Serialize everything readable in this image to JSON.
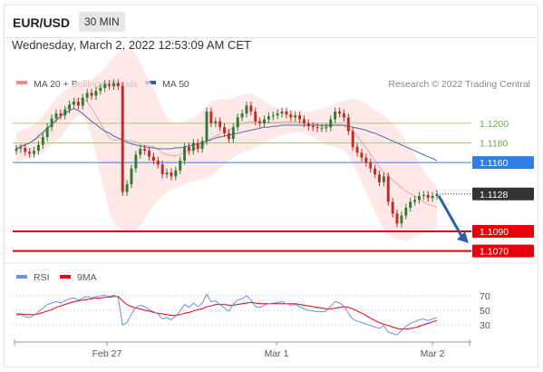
{
  "header": {
    "pair": "EUR/USD",
    "timeframe": "30 MIN"
  },
  "datetime": "Wednesday, March 2, 2022 12:53:09 AM CET",
  "credit": "Research © 2022 Trading Central",
  "colors": {
    "bollinger": "#f4a3a3",
    "bollinger_fill": "#fde0e0",
    "ma50": "#4a6fa8",
    "resistance": "#a6c97a",
    "pivot": "#2f7ee6",
    "support": "#e8000b",
    "candle_up": "#2e7d32",
    "candle_down": "#c62828",
    "rsi": "#6f8fe0",
    "rsi_ma": "#e8000b",
    "price_tag": "#333333",
    "arrow": "#2c5fa8"
  },
  "legend": [
    {
      "label": "MA 20 + Bollinger Bands",
      "color": "#f08c8c"
    },
    {
      "label": "MA 50",
      "color": "#2c5fa8"
    }
  ],
  "rsi_legend": [
    {
      "label": "RSI",
      "color": "#6f8fe0"
    },
    {
      "label": "9MA",
      "color": "#e8000b"
    }
  ],
  "chart_data": [
    {
      "type": "candlestick",
      "title": "",
      "x_ticks": [
        "Feb 27",
        "Mar 1",
        "Mar 2"
      ],
      "ylim": [
        1.1065,
        1.1235
      ],
      "levels": [
        {
          "value": 1.12,
          "label": "1.1200",
          "kind": "resistance"
        },
        {
          "value": 1.118,
          "label": "1.1180",
          "kind": "resistance"
        },
        {
          "value": 1.116,
          "label": "1.1160",
          "kind": "pivot"
        },
        {
          "value": 1.109,
          "label": "1.1090",
          "kind": "support"
        },
        {
          "value": 1.107,
          "label": "1.1070",
          "kind": "support"
        }
      ],
      "last_price": {
        "value": 1.1128,
        "label": "1.1128"
      },
      "forecast": "down to 1.1090",
      "close": [
        1.1174,
        1.1175,
        1.1171,
        1.1169,
        1.1172,
        1.1178,
        1.1186,
        1.1196,
        1.1205,
        1.121,
        1.1208,
        1.1214,
        1.1219,
        1.1222,
        1.1218,
        1.1226,
        1.1231,
        1.1228,
        1.1233,
        1.1236,
        1.124,
        1.1238,
        1.1241,
        1.1238,
        1.113,
        1.1138,
        1.1154,
        1.1168,
        1.1174,
        1.1172,
        1.1166,
        1.1162,
        1.1158,
        1.1148,
        1.115,
        1.1146,
        1.1152,
        1.1162,
        1.1176,
        1.1172,
        1.118,
        1.1174,
        1.1182,
        1.1212,
        1.12,
        1.1202,
        1.1196,
        1.119,
        1.1184,
        1.1196,
        1.1206,
        1.121,
        1.1218,
        1.1212,
        1.1202,
        1.12,
        1.1204,
        1.1207,
        1.1208,
        1.121,
        1.1212,
        1.1209,
        1.1206,
        1.1208,
        1.1204,
        1.12,
        1.1197,
        1.1196,
        1.1195,
        1.1195,
        1.1196,
        1.1204,
        1.1212,
        1.121,
        1.1206,
        1.1192,
        1.1176,
        1.117,
        1.1165,
        1.116,
        1.1154,
        1.1148,
        1.114,
        1.1146,
        1.112,
        1.1108,
        1.1098,
        1.1106,
        1.1114,
        1.112,
        1.1122,
        1.1126,
        1.1127,
        1.1124,
        1.1126,
        1.1128
      ],
      "ma50": [
        1.1174,
        1.1176,
        1.1178,
        1.118,
        1.1183,
        1.1187,
        1.1191,
        1.1195,
        1.1199,
        1.1203,
        1.1207,
        1.121,
        1.1213,
        1.1215,
        1.1213,
        1.121,
        1.1206,
        1.1202,
        1.1199,
        1.1195,
        1.1192,
        1.119,
        1.1187,
        1.1185,
        1.1183,
        1.1181,
        1.1179,
        1.1178,
        1.1177,
        1.1176,
        1.1175,
        1.1175,
        1.1174,
        1.1174,
        1.1174,
        1.1174,
        1.1175,
        1.1175,
        1.1176,
        1.1177,
        1.1178,
        1.1179,
        1.118,
        1.1182,
        1.1183,
        1.1185,
        1.1186,
        1.1187,
        1.1188,
        1.1189,
        1.119,
        1.1191,
        1.1192,
        1.1193,
        1.1194,
        1.1195,
        1.1196,
        1.1196,
        1.1197,
        1.1197,
        1.1198,
        1.1198,
        1.1198,
        1.1198,
        1.1198,
        1.1198,
        1.1198,
        1.1198,
        1.1198,
        1.1198,
        1.1198,
        1.1198,
        1.1198,
        1.1198,
        1.1198,
        1.1197,
        1.1196,
        1.1195,
        1.1194,
        1.1193,
        1.1191,
        1.119,
        1.1188,
        1.1186,
        1.1184,
        1.1182,
        1.118,
        1.1178,
        1.1176,
        1.1174,
        1.1172,
        1.117,
        1.1168,
        1.1166,
        1.1164,
        1.1162
      ],
      "bb_upper": [
        1.119,
        1.1192,
        1.1194,
        1.1196,
        1.1199,
        1.1203,
        1.1208,
        1.1214,
        1.122,
        1.1225,
        1.123,
        1.1234,
        1.1238,
        1.124,
        1.1242,
        1.1243,
        1.1244,
        1.1245,
        1.1248,
        1.1252,
        1.1256,
        1.1262,
        1.1268,
        1.1272,
        1.1275,
        1.1275,
        1.1274,
        1.127,
        1.1262,
        1.1252,
        1.1244,
        1.1236,
        1.1226,
        1.1214,
        1.1206,
        1.1202,
        1.12,
        1.12,
        1.1202,
        1.1204,
        1.1206,
        1.1208,
        1.1212,
        1.1218,
        1.1222,
        1.1224,
        1.1225,
        1.1224,
        1.1224,
        1.1226,
        1.1228,
        1.1229,
        1.123,
        1.123,
        1.1228,
        1.1226,
        1.1223,
        1.122,
        1.1218,
        1.1216,
        1.1215,
        1.1214,
        1.1213,
        1.1212,
        1.1212,
        1.1212,
        1.1212,
        1.1213,
        1.1214,
        1.1214,
        1.1216,
        1.1218,
        1.122,
        1.1222,
        1.1223,
        1.1224,
        1.1225,
        1.1224,
        1.1222,
        1.122,
        1.1217,
        1.1214,
        1.1211,
        1.1208,
        1.1205,
        1.12,
        1.1195,
        1.1188,
        1.1182,
        1.1175,
        1.1168,
        1.116,
        1.1152,
        1.1145,
        1.114,
        1.1136
      ],
      "bb_lower": [
        1.116,
        1.1162,
        1.1163,
        1.1164,
        1.1166,
        1.1168,
        1.117,
        1.1174,
        1.1178,
        1.1182,
        1.1186,
        1.1192,
        1.1198,
        1.1204,
        1.1208,
        1.1208,
        1.12,
        1.1186,
        1.1168,
        1.1148,
        1.1128,
        1.111,
        1.1098,
        1.1094,
        1.1092,
        1.109,
        1.109,
        1.1092,
        1.1096,
        1.1102,
        1.111,
        1.1116,
        1.1122,
        1.1126,
        1.113,
        1.1132,
        1.1134,
        1.1136,
        1.1138,
        1.114,
        1.1141,
        1.1142,
        1.1143,
        1.1145,
        1.1147,
        1.115,
        1.1154,
        1.1158,
        1.1162,
        1.1165,
        1.1168,
        1.117,
        1.1172,
        1.1173,
        1.1175,
        1.1177,
        1.118,
        1.1182,
        1.1184,
        1.1186,
        1.1188,
        1.1189,
        1.119,
        1.1191,
        1.1191,
        1.119,
        1.1188,
        1.1186,
        1.1183,
        1.118,
        1.1178,
        1.1177,
        1.1176,
        1.1175,
        1.1172,
        1.1166,
        1.1158,
        1.115,
        1.114,
        1.113,
        1.112,
        1.111,
        1.11,
        1.1092,
        1.1087,
        1.1084,
        1.1082,
        1.1081,
        1.108,
        1.1082,
        1.1084,
        1.1086,
        1.1088,
        1.109,
        1.1092,
        1.1093
      ]
    },
    {
      "type": "line",
      "title": "",
      "y_ticks": [
        70,
        50,
        30
      ],
      "ylim": [
        10,
        80
      ],
      "series": [
        {
          "name": "RSI",
          "values": [
            43,
            44,
            41,
            40,
            43,
            48,
            53,
            58,
            60,
            62,
            60,
            63,
            66,
            67,
            64,
            67,
            69,
            67,
            69,
            70,
            71,
            69,
            71,
            68,
            30,
            33,
            45,
            54,
            57,
            55,
            51,
            48,
            45,
            38,
            40,
            37,
            42,
            49,
            58,
            54,
            60,
            55,
            60,
            72,
            62,
            63,
            58,
            53,
            49,
            58,
            64,
            66,
            70,
            64,
            55,
            54,
            57,
            59,
            60,
            61,
            62,
            59,
            57,
            58,
            55,
            52,
            50,
            49,
            48,
            48,
            49,
            56,
            62,
            60,
            56,
            46,
            38,
            35,
            33,
            31,
            29,
            27,
            25,
            29,
            20,
            18,
            16,
            22,
            28,
            32,
            34,
            37,
            38,
            36,
            38,
            40
          ]
        },
        {
          "name": "9MA",
          "values": [
            45,
            45,
            44,
            44,
            44,
            45,
            47,
            49,
            51,
            54,
            56,
            58,
            60,
            62,
            63,
            64,
            65,
            66,
            67,
            67,
            68,
            68,
            69,
            69,
            63,
            58,
            55,
            53,
            52,
            50,
            49,
            47,
            46,
            45,
            44,
            43,
            43,
            44,
            46,
            47,
            49,
            51,
            52,
            55,
            56,
            58,
            58,
            58,
            57,
            57,
            58,
            59,
            60,
            61,
            60,
            59,
            59,
            59,
            59,
            59,
            59,
            59,
            59,
            59,
            58,
            57,
            56,
            55,
            54,
            53,
            52,
            52,
            53,
            54,
            55,
            54,
            52,
            49,
            46,
            43,
            39,
            36,
            33,
            31,
            29,
            27,
            25,
            24,
            24,
            25,
            26,
            28,
            30,
            32,
            34,
            36
          ]
        }
      ]
    }
  ]
}
